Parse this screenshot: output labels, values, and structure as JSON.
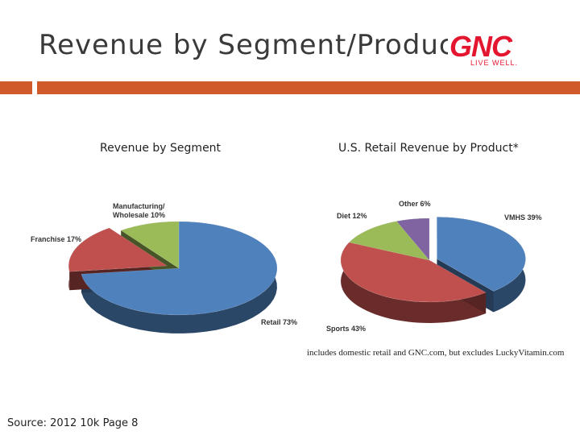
{
  "slide": {
    "title": "Revenue by Segment/Product",
    "logo": {
      "brand": "GNC",
      "tagline": "LIVE WELL."
    },
    "source": "Source: 2012 10k Page 8",
    "footnote": "includes domestic retail and GNC.com, but excludes LuckyVitamin.com"
  },
  "chart_data": [
    {
      "type": "pie",
      "title": "Revenue by Segment",
      "slices": [
        {
          "label": "Retail 73%",
          "value": 73,
          "color": "#4f81bd"
        },
        {
          "label": "Franchise 17%",
          "value": 17,
          "color": "#c0504d"
        },
        {
          "label": "Manufacturing/ Wholesale 10%",
          "value": 10,
          "color": "#9bbb59"
        }
      ]
    },
    {
      "type": "pie",
      "title": "U.S. Retail Revenue by Product*",
      "slices": [
        {
          "label": "VMHS 39%",
          "value": 39,
          "color": "#4f81bd"
        },
        {
          "label": "Sports 43%",
          "value": 43,
          "color": "#c0504d"
        },
        {
          "label": "Diet 12%",
          "value": 12,
          "color": "#9bbb59"
        },
        {
          "label": "Other 6%",
          "value": 6,
          "color": "#8064a2"
        }
      ]
    }
  ]
}
